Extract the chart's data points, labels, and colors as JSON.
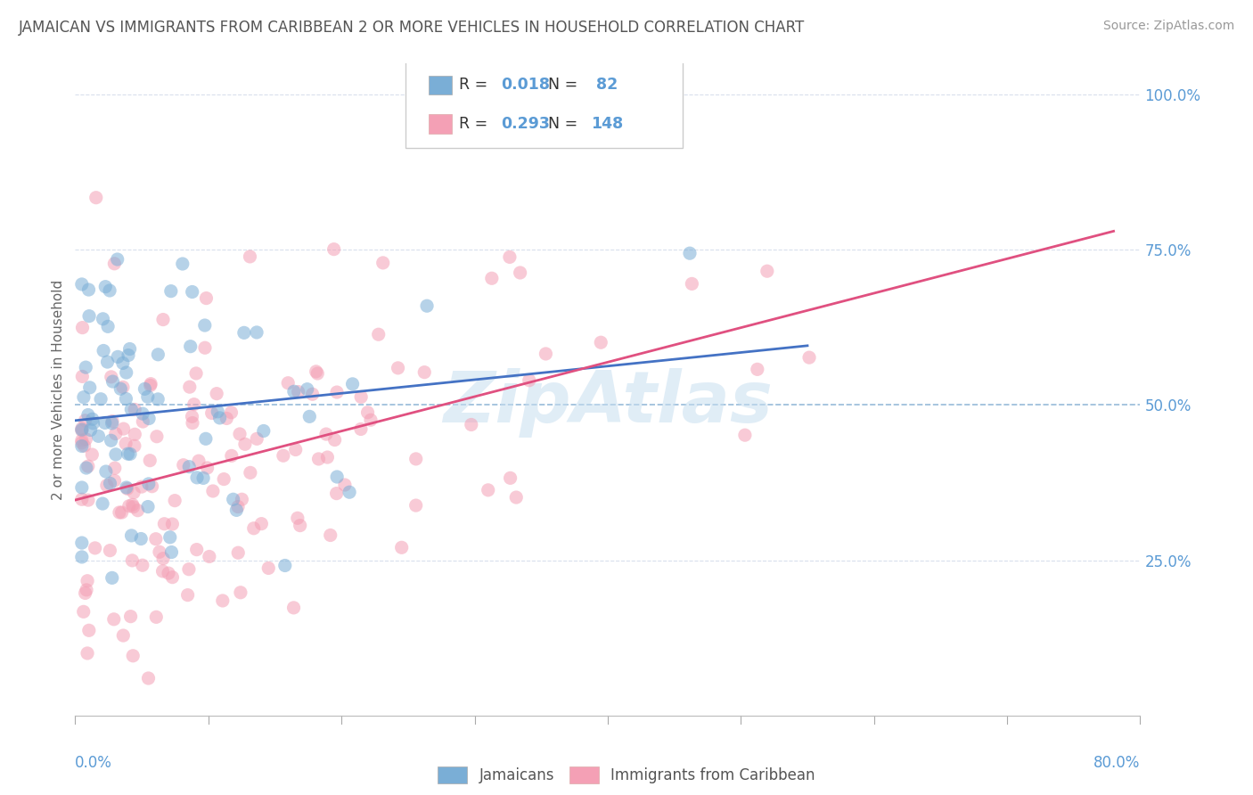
{
  "title": "JAMAICAN VS IMMIGRANTS FROM CARIBBEAN 2 OR MORE VEHICLES IN HOUSEHOLD CORRELATION CHART",
  "source": "Source: ZipAtlas.com",
  "ylabel": "2 or more Vehicles in Household",
  "blue_color": "#7aaed6",
  "pink_color": "#f4a0b5",
  "blue_line_color": "#4472c4",
  "pink_line_color": "#e05080",
  "axis_color": "#5b9bd5",
  "grid_color": "#d0d8e8",
  "dashed_color": "#8cb4d5",
  "title_color": "#555555",
  "source_color": "#999999",
  "watermark_color": "#c8dff0",
  "xlim": [
    0.0,
    0.8
  ],
  "ylim": [
    0.0,
    1.05
  ],
  "yticks": [
    0.25,
    0.5,
    0.75,
    1.0
  ],
  "ytick_labels": [
    "25.0%",
    "50.0%",
    "75.0%",
    "100.0%"
  ],
  "blue_N": 82,
  "pink_N": 148,
  "blue_R": 0.018,
  "pink_R": 0.293,
  "blue_seed": 77,
  "pink_seed": 55,
  "marker_size": 120,
  "marker_alpha": 0.55
}
